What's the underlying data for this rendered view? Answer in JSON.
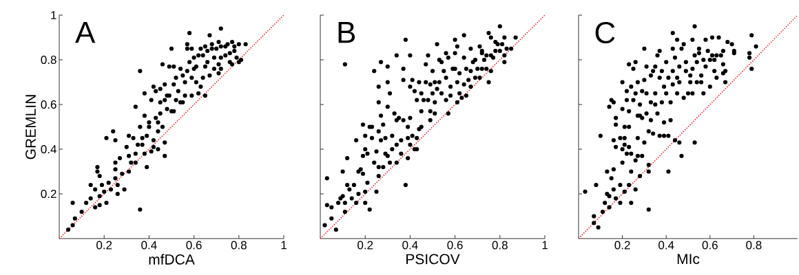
{
  "chart_data": [
    {
      "type": "scatter",
      "ylabel": "GREMLIN",
      "xlabel": "mfDCA",
      "annotations": [
        "A"
      ],
      "xlim": [
        0,
        1
      ],
      "ylim": [
        0,
        1
      ],
      "xticks": [
        0.2,
        0.4,
        0.6,
        0.8,
        1
      ],
      "yticks": [
        0.2,
        0.4,
        0.6,
        0.8,
        1
      ],
      "series": [
        {
          "type": "scatter",
          "color": "#000000",
          "marker": "circle",
          "x": [
            0.04,
            0.06,
            0.07,
            0.06,
            0.1,
            0.12,
            0.14,
            0.14,
            0.16,
            0.16,
            0.17,
            0.17,
            0.18,
            0.18,
            0.18,
            0.19,
            0.2,
            0.21,
            0.21,
            0.22,
            0.23,
            0.24,
            0.25,
            0.25,
            0.25,
            0.25,
            0.26,
            0.26,
            0.27,
            0.28,
            0.29,
            0.3,
            0.31,
            0.31,
            0.31,
            0.32,
            0.33,
            0.34,
            0.34,
            0.34,
            0.35,
            0.36,
            0.36,
            0.36,
            0.37,
            0.37,
            0.38,
            0.38,
            0.38,
            0.39,
            0.39,
            0.4,
            0.4,
            0.41,
            0.41,
            0.42,
            0.42,
            0.42,
            0.43,
            0.43,
            0.44,
            0.44,
            0.44,
            0.45,
            0.45,
            0.45,
            0.46,
            0.46,
            0.47,
            0.47,
            0.47,
            0.47,
            0.48,
            0.48,
            0.49,
            0.49,
            0.5,
            0.5,
            0.51,
            0.51,
            0.51,
            0.52,
            0.52,
            0.53,
            0.54,
            0.54,
            0.55,
            0.55,
            0.56,
            0.56,
            0.57,
            0.57,
            0.57,
            0.58,
            0.58,
            0.59,
            0.59,
            0.59,
            0.6,
            0.6,
            0.61,
            0.61,
            0.62,
            0.62,
            0.63,
            0.63,
            0.64,
            0.64,
            0.65,
            0.65,
            0.65,
            0.66,
            0.66,
            0.67,
            0.67,
            0.68,
            0.68,
            0.69,
            0.69,
            0.7,
            0.71,
            0.71,
            0.71,
            0.72,
            0.72,
            0.72,
            0.72,
            0.74,
            0.74,
            0.75,
            0.76,
            0.76,
            0.77,
            0.77,
            0.78,
            0.78,
            0.79,
            0.8,
            0.8,
            0.81,
            0.83
          ],
          "values": [
            0.04,
            0.06,
            0.09,
            0.16,
            0.12,
            0.16,
            0.24,
            0.18,
            0.14,
            0.22,
            0.32,
            0.3,
            0.28,
            0.19,
            0.15,
            0.24,
            0.21,
            0.16,
            0.45,
            0.25,
            0.22,
            0.48,
            0.44,
            0.31,
            0.34,
            0.27,
            0.2,
            0.24,
            0.36,
            0.29,
            0.22,
            0.41,
            0.3,
            0.37,
            0.46,
            0.34,
            0.45,
            0.38,
            0.34,
            0.59,
            0.42,
            0.13,
            0.75,
            0.5,
            0.45,
            0.42,
            0.38,
            0.65,
            0.55,
            0.46,
            0.32,
            0.52,
            0.5,
            0.39,
            0.62,
            0.68,
            0.44,
            0.41,
            0.54,
            0.66,
            0.48,
            0.4,
            0.52,
            0.67,
            0.61,
            0.56,
            0.78,
            0.5,
            0.69,
            0.43,
            0.37,
            0.62,
            0.58,
            0.64,
            0.77,
            0.64,
            0.57,
            0.85,
            0.77,
            0.69,
            0.57,
            0.62,
            0.72,
            0.66,
            0.76,
            0.61,
            0.73,
            0.61,
            0.64,
            0.7,
            0.75,
            0.87,
            0.85,
            0.79,
            0.92,
            0.72,
            0.85,
            0.64,
            0.81,
            0.76,
            0.7,
            0.77,
            0.82,
            0.65,
            0.68,
            0.85,
            0.72,
            0.82,
            0.86,
            0.64,
            0.77,
            0.84,
            0.79,
            0.91,
            0.73,
            0.85,
            0.87,
            0.81,
            0.76,
            0.85,
            0.78,
            0.88,
            0.74,
            0.94,
            0.81,
            0.76,
            0.86,
            0.82,
            0.86,
            0.87,
            0.83,
            0.79,
            0.88,
            0.78,
            0.86,
            0.84,
            0.81,
            0.79,
            0.87,
            0.8,
            0.87
          ]
        },
        {
          "type": "line",
          "color": "#e8202a",
          "marker": "none",
          "line_style": "dotted",
          "x": [
            0,
            1
          ],
          "values": [
            0,
            1
          ]
        }
      ]
    },
    {
      "type": "scatter",
      "xlabel": "PSICOV",
      "annotations": [
        "B"
      ],
      "xlim": [
        0,
        1
      ],
      "ylim": [
        0,
        1
      ],
      "xticks": [
        0.2,
        0.4,
        0.6,
        0.8,
        1
      ],
      "yticks": [
        0.2,
        0.4,
        0.6,
        0.8,
        1
      ],
      "tick_labels": "x",
      "series": [
        {
          "type": "scatter",
          "color": "#000000",
          "marker": "circle",
          "x": [
            0.02,
            0.03,
            0.03,
            0.05,
            0.05,
            0.07,
            0.08,
            0.09,
            0.1,
            0.1,
            0.11,
            0.11,
            0.11,
            0.12,
            0.12,
            0.13,
            0.14,
            0.15,
            0.16,
            0.16,
            0.17,
            0.17,
            0.18,
            0.19,
            0.19,
            0.19,
            0.2,
            0.2,
            0.2,
            0.2,
            0.21,
            0.21,
            0.22,
            0.22,
            0.23,
            0.23,
            0.24,
            0.24,
            0.25,
            0.25,
            0.26,
            0.26,
            0.26,
            0.26,
            0.26,
            0.27,
            0.27,
            0.27,
            0.28,
            0.28,
            0.29,
            0.29,
            0.3,
            0.3,
            0.3,
            0.3,
            0.31,
            0.31,
            0.32,
            0.32,
            0.33,
            0.34,
            0.34,
            0.34,
            0.34,
            0.35,
            0.36,
            0.36,
            0.37,
            0.37,
            0.37,
            0.38,
            0.38,
            0.39,
            0.39,
            0.39,
            0.4,
            0.4,
            0.4,
            0.4,
            0.41,
            0.41,
            0.42,
            0.42,
            0.43,
            0.43,
            0.43,
            0.44,
            0.44,
            0.45,
            0.45,
            0.45,
            0.46,
            0.47,
            0.47,
            0.48,
            0.48,
            0.49,
            0.49,
            0.49,
            0.5,
            0.5,
            0.51,
            0.51,
            0.51,
            0.52,
            0.52,
            0.53,
            0.53,
            0.54,
            0.54,
            0.55,
            0.56,
            0.56,
            0.56,
            0.57,
            0.57,
            0.58,
            0.58,
            0.59,
            0.6,
            0.6,
            0.6,
            0.61,
            0.61,
            0.61,
            0.62,
            0.62,
            0.63,
            0.64,
            0.64,
            0.64,
            0.65,
            0.65,
            0.66,
            0.67,
            0.67,
            0.67,
            0.68,
            0.69,
            0.69,
            0.7,
            0.71,
            0.71,
            0.72,
            0.72,
            0.72,
            0.73,
            0.74,
            0.74,
            0.75,
            0.75,
            0.76,
            0.76,
            0.76,
            0.77,
            0.78,
            0.78,
            0.79,
            0.8,
            0.8,
            0.81,
            0.82,
            0.82,
            0.82,
            0.83,
            0.85,
            0.87
          ],
          "values": [
            0.06,
            0.15,
            0.27,
            0.09,
            0.14,
            0.04,
            0.16,
            0.18,
            0.19,
            0.3,
            0.78,
            0.12,
            0.16,
            0.36,
            0.24,
            0.22,
            0.18,
            0.24,
            0.16,
            0.44,
            0.2,
            0.3,
            0.31,
            0.29,
            0.51,
            0.37,
            0.16,
            0.46,
            0.4,
            0.21,
            0.25,
            0.38,
            0.5,
            0.13,
            0.45,
            0.5,
            0.34,
            0.75,
            0.39,
            0.21,
            0.68,
            0.28,
            0.61,
            0.48,
            0.32,
            0.55,
            0.44,
            0.79,
            0.51,
            0.32,
            0.38,
            0.45,
            0.7,
            0.59,
            0.77,
            0.37,
            0.65,
            0.34,
            0.4,
            0.46,
            0.56,
            0.34,
            0.82,
            0.42,
            0.53,
            0.54,
            0.44,
            0.38,
            0.71,
            0.76,
            0.53,
            0.89,
            0.24,
            0.5,
            0.45,
            0.36,
            0.68,
            0.54,
            0.42,
            0.82,
            0.71,
            0.46,
            0.4,
            0.66,
            0.45,
            0.62,
            0.4,
            0.49,
            0.7,
            0.65,
            0.57,
            0.5,
            0.62,
            0.78,
            0.7,
            0.62,
            0.82,
            0.53,
            0.69,
            0.57,
            0.75,
            0.65,
            0.61,
            0.56,
            0.7,
            0.67,
            0.87,
            0.8,
            0.7,
            0.79,
            0.65,
            0.75,
            0.83,
            0.62,
            0.72,
            0.56,
            0.81,
            0.64,
            0.68,
            0.76,
            0.83,
            0.76,
            0.89,
            0.7,
            0.61,
            0.86,
            0.65,
            0.74,
            0.63,
            0.81,
            0.91,
            0.69,
            0.76,
            0.64,
            0.71,
            0.68,
            0.75,
            0.85,
            0.79,
            0.72,
            0.8,
            0.76,
            0.72,
            0.86,
            0.84,
            0.76,
            0.83,
            0.8,
            0.82,
            0.76,
            0.7,
            0.92,
            0.9,
            0.82,
            0.75,
            0.81,
            0.88,
            0.84,
            0.87,
            0.95,
            0.84,
            0.87,
            0.9,
            0.82,
            0.79,
            0.85,
            0.85,
            0.9
          ]
        },
        {
          "type": "line",
          "color": "#e8202a",
          "marker": "none",
          "line_style": "dotted",
          "x": [
            0,
            1
          ],
          "values": [
            0,
            1
          ]
        }
      ]
    },
    {
      "type": "scatter",
      "xlabel": "MIc",
      "annotations": [
        "C"
      ],
      "xlim": [
        0,
        1
      ],
      "ylim": [
        0,
        1
      ],
      "xticks": [
        0.2,
        0.4,
        0.6,
        0.8
      ],
      "yticks": [
        0.2,
        0.4,
        0.6,
        0.8,
        1
      ],
      "tick_labels": "x",
      "series": [
        {
          "type": "scatter",
          "color": "#000000",
          "marker": "circle",
          "x": [
            0.03,
            0.07,
            0.07,
            0.08,
            0.09,
            0.1,
            0.11,
            0.12,
            0.13,
            0.13,
            0.14,
            0.14,
            0.14,
            0.15,
            0.15,
            0.16,
            0.16,
            0.16,
            0.16,
            0.17,
            0.17,
            0.17,
            0.17,
            0.19,
            0.19,
            0.19,
            0.2,
            0.2,
            0.2,
            0.2,
            0.21,
            0.21,
            0.21,
            0.21,
            0.22,
            0.22,
            0.22,
            0.23,
            0.23,
            0.23,
            0.23,
            0.23,
            0.24,
            0.24,
            0.24,
            0.24,
            0.25,
            0.25,
            0.26,
            0.26,
            0.26,
            0.26,
            0.27,
            0.27,
            0.27,
            0.27,
            0.28,
            0.28,
            0.28,
            0.29,
            0.29,
            0.29,
            0.3,
            0.3,
            0.3,
            0.31,
            0.31,
            0.31,
            0.32,
            0.32,
            0.32,
            0.32,
            0.33,
            0.33,
            0.33,
            0.34,
            0.34,
            0.35,
            0.35,
            0.35,
            0.36,
            0.36,
            0.37,
            0.37,
            0.37,
            0.38,
            0.38,
            0.39,
            0.39,
            0.39,
            0.4,
            0.4,
            0.41,
            0.41,
            0.41,
            0.42,
            0.42,
            0.43,
            0.43,
            0.43,
            0.43,
            0.44,
            0.44,
            0.45,
            0.45,
            0.45,
            0.46,
            0.46,
            0.46,
            0.47,
            0.47,
            0.48,
            0.48,
            0.49,
            0.49,
            0.5,
            0.51,
            0.51,
            0.52,
            0.52,
            0.52,
            0.53,
            0.53,
            0.53,
            0.54,
            0.54,
            0.55,
            0.55,
            0.56,
            0.56,
            0.57,
            0.57,
            0.58,
            0.58,
            0.59,
            0.6,
            0.6,
            0.61,
            0.61,
            0.62,
            0.62,
            0.63,
            0.63,
            0.64,
            0.65,
            0.66,
            0.66,
            0.66,
            0.67,
            0.67,
            0.68,
            0.7,
            0.71,
            0.71,
            0.78,
            0.78,
            0.79,
            0.79,
            0.81
          ],
          "values": [
            0.21,
            0.1,
            0.07,
            0.24,
            0.05,
            0.46,
            0.12,
            0.16,
            0.2,
            0.3,
            0.14,
            0.19,
            0.59,
            0.62,
            0.27,
            0.44,
            0.31,
            0.22,
            0.61,
            0.18,
            0.54,
            0.41,
            0.51,
            0.45,
            0.16,
            0.24,
            0.4,
            0.34,
            0.7,
            0.58,
            0.45,
            0.5,
            0.21,
            0.42,
            0.66,
            0.38,
            0.62,
            0.78,
            0.24,
            0.57,
            0.5,
            0.41,
            0.68,
            0.16,
            0.3,
            0.38,
            0.76,
            0.62,
            0.22,
            0.35,
            0.65,
            0.79,
            0.37,
            0.55,
            0.45,
            0.7,
            0.55,
            0.6,
            0.28,
            0.66,
            0.37,
            0.54,
            0.85,
            0.71,
            0.43,
            0.65,
            0.56,
            0.77,
            0.48,
            0.33,
            0.13,
            0.3,
            0.73,
            0.53,
            0.61,
            0.75,
            0.47,
            0.6,
            0.77,
            0.65,
            0.82,
            0.56,
            0.46,
            0.84,
            0.72,
            0.61,
            0.75,
            0.52,
            0.46,
            0.68,
            0.65,
            0.79,
            0.46,
            0.3,
            0.72,
            0.53,
            0.61,
            0.85,
            0.69,
            0.92,
            0.75,
            0.81,
            0.44,
            0.72,
            0.65,
            0.89,
            0.77,
            0.43,
            0.7,
            0.37,
            0.85,
            0.63,
            0.87,
            0.75,
            0.79,
            0.65,
            0.7,
            0.73,
            0.65,
            0.89,
            0.76,
            0.82,
            0.95,
            0.43,
            0.7,
            0.79,
            0.83,
            0.85,
            0.7,
            0.73,
            0.65,
            0.8,
            0.89,
            0.77,
            0.84,
            0.8,
            0.68,
            0.82,
            0.9,
            0.75,
            0.8,
            0.82,
            0.72,
            0.9,
            0.82,
            0.74,
            0.84,
            0.78,
            0.7,
            0.75,
            0.88,
            0.87,
            0.84,
            0.83,
            0.83,
            0.81,
            0.76,
            0.91,
            0.86
          ]
        },
        {
          "type": "line",
          "color": "#e8202a",
          "marker": "none",
          "line_style": "dotted",
          "x": [
            0,
            1
          ],
          "values": [
            0,
            1
          ]
        }
      ]
    }
  ]
}
